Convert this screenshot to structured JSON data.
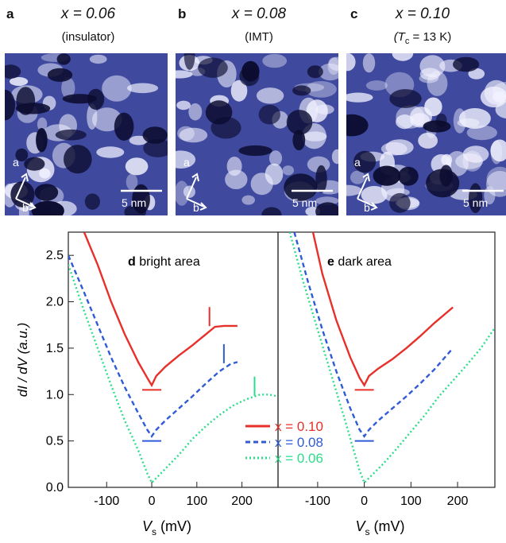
{
  "panels": [
    {
      "letter": "a",
      "title": "x = 0.06",
      "subtitle": "(insulator)",
      "axis_a": "a",
      "axis_b": "b",
      "scale": "5 nm"
    },
    {
      "letter": "b",
      "title": "x = 0.08",
      "subtitle": "(IMT)",
      "axis_a": "a",
      "axis_b": "b",
      "scale": "5 nm"
    },
    {
      "letter": "c",
      "title": "x = 0.10",
      "subtitle": "(T",
      "subtitle_sub": "c",
      "subtitle_rest": " = 13 K)",
      "axis_a": "a",
      "axis_b": "b",
      "scale": "5 nm"
    }
  ],
  "colors": {
    "x010": "#e8302a",
    "x008": "#2f5bd6",
    "x006": "#2ddc8a",
    "stm_dark": "#0c0c30",
    "stm_mid": "#3f4a9e",
    "stm_light": "#f2f2ff"
  },
  "chart_data": [
    {
      "type": "line",
      "panel_letter": "d",
      "panel_title": "bright area",
      "xlabel": "V",
      "xlabel_sub": "s",
      "xlabel_unit": " (mV)",
      "ylabel": "dI / dV (a.u.)",
      "xlim": [
        -185,
        280
      ],
      "ylim": [
        0,
        2.75
      ],
      "xticks": [
        -100,
        0,
        100,
        200
      ],
      "yticks": [
        0.0,
        0.5,
        1.0,
        1.5,
        2.0,
        2.5
      ],
      "series": [
        {
          "name": "x = 0.10",
          "style": "solid",
          "x": [
            -150,
            -120,
            -90,
            -60,
            -30,
            -10,
            0,
            10,
            30,
            60,
            90,
            120,
            140,
            160,
            190
          ],
          "y": [
            2.75,
            2.4,
            2.0,
            1.65,
            1.35,
            1.18,
            1.1,
            1.2,
            1.3,
            1.42,
            1.53,
            1.65,
            1.73,
            1.74,
            1.74
          ]
        },
        {
          "name": "x = 0.08",
          "style": "dashed",
          "x": [
            -185,
            -150,
            -120,
            -90,
            -60,
            -30,
            -10,
            0,
            10,
            30,
            60,
            90,
            120,
            150,
            175,
            190
          ],
          "y": [
            2.5,
            2.1,
            1.75,
            1.4,
            1.08,
            0.8,
            0.62,
            0.55,
            0.62,
            0.72,
            0.85,
            0.98,
            1.12,
            1.25,
            1.33,
            1.35
          ]
        },
        {
          "name": "x = 0.06",
          "style": "dotted",
          "x": [
            -185,
            -150,
            -120,
            -90,
            -60,
            -30,
            -10,
            0,
            10,
            30,
            60,
            90,
            120,
            150,
            180,
            210,
            240,
            260,
            280
          ],
          "y": [
            2.4,
            1.9,
            1.5,
            1.1,
            0.72,
            0.4,
            0.15,
            0.05,
            0.1,
            0.2,
            0.35,
            0.52,
            0.66,
            0.78,
            0.88,
            0.95,
            1.0,
            1.0,
            0.98
          ]
        }
      ],
      "markers": [
        {
          "series": "x = 0.10",
          "x": 0,
          "y": 1.05,
          "type": "h"
        },
        {
          "series": "x = 0.08",
          "x": 0,
          "y": 0.5,
          "type": "h"
        },
        {
          "series": "x = 0.10",
          "x": 128,
          "y": 1.84,
          "type": "v"
        },
        {
          "series": "x = 0.08",
          "x": 160,
          "y": 1.44,
          "type": "v"
        },
        {
          "series": "x = 0.06",
          "x": 228,
          "y": 1.09,
          "type": "v"
        }
      ]
    },
    {
      "type": "line",
      "panel_letter": "e",
      "panel_title": "dark area",
      "xlabel": "V",
      "xlabel_sub": "s",
      "xlabel_unit": " (mV)",
      "xlim": [
        -185,
        280
      ],
      "ylim": [
        0,
        2.75
      ],
      "xticks": [
        -100,
        0,
        100,
        200
      ],
      "series": [
        {
          "name": "x = 0.10",
          "style": "solid",
          "x": [
            -110,
            -90,
            -60,
            -30,
            -10,
            0,
            10,
            30,
            60,
            90,
            120,
            150,
            190
          ],
          "y": [
            2.75,
            2.3,
            1.8,
            1.4,
            1.18,
            1.1,
            1.2,
            1.28,
            1.38,
            1.5,
            1.63,
            1.77,
            1.94
          ]
        },
        {
          "name": "x = 0.08",
          "style": "dashed",
          "x": [
            -150,
            -120,
            -90,
            -60,
            -30,
            -10,
            0,
            10,
            30,
            60,
            90,
            120,
            150,
            190
          ],
          "y": [
            2.75,
            2.2,
            1.7,
            1.25,
            0.85,
            0.62,
            0.55,
            0.62,
            0.72,
            0.85,
            0.98,
            1.12,
            1.27,
            1.5
          ]
        },
        {
          "name": "x = 0.06",
          "style": "dotted",
          "x": [
            -160,
            -130,
            -100,
            -70,
            -40,
            -10,
            0,
            10,
            40,
            70,
            100,
            130,
            160,
            190,
            220,
            250,
            280
          ],
          "y": [
            2.75,
            2.2,
            1.7,
            1.2,
            0.7,
            0.18,
            0.05,
            0.1,
            0.25,
            0.42,
            0.6,
            0.78,
            0.98,
            1.15,
            1.32,
            1.5,
            1.72
          ]
        }
      ],
      "markers": [
        {
          "series": "x = 0.10",
          "x": 0,
          "y": 1.05,
          "type": "h"
        },
        {
          "series": "x = 0.08",
          "x": 0,
          "y": 0.5,
          "type": "h"
        }
      ]
    }
  ],
  "legend": [
    {
      "label": "x = 0.10",
      "style": "solid"
    },
    {
      "label": "x = 0.08",
      "style": "dashed"
    },
    {
      "label": "x = 0.06",
      "style": "dotted"
    }
  ]
}
